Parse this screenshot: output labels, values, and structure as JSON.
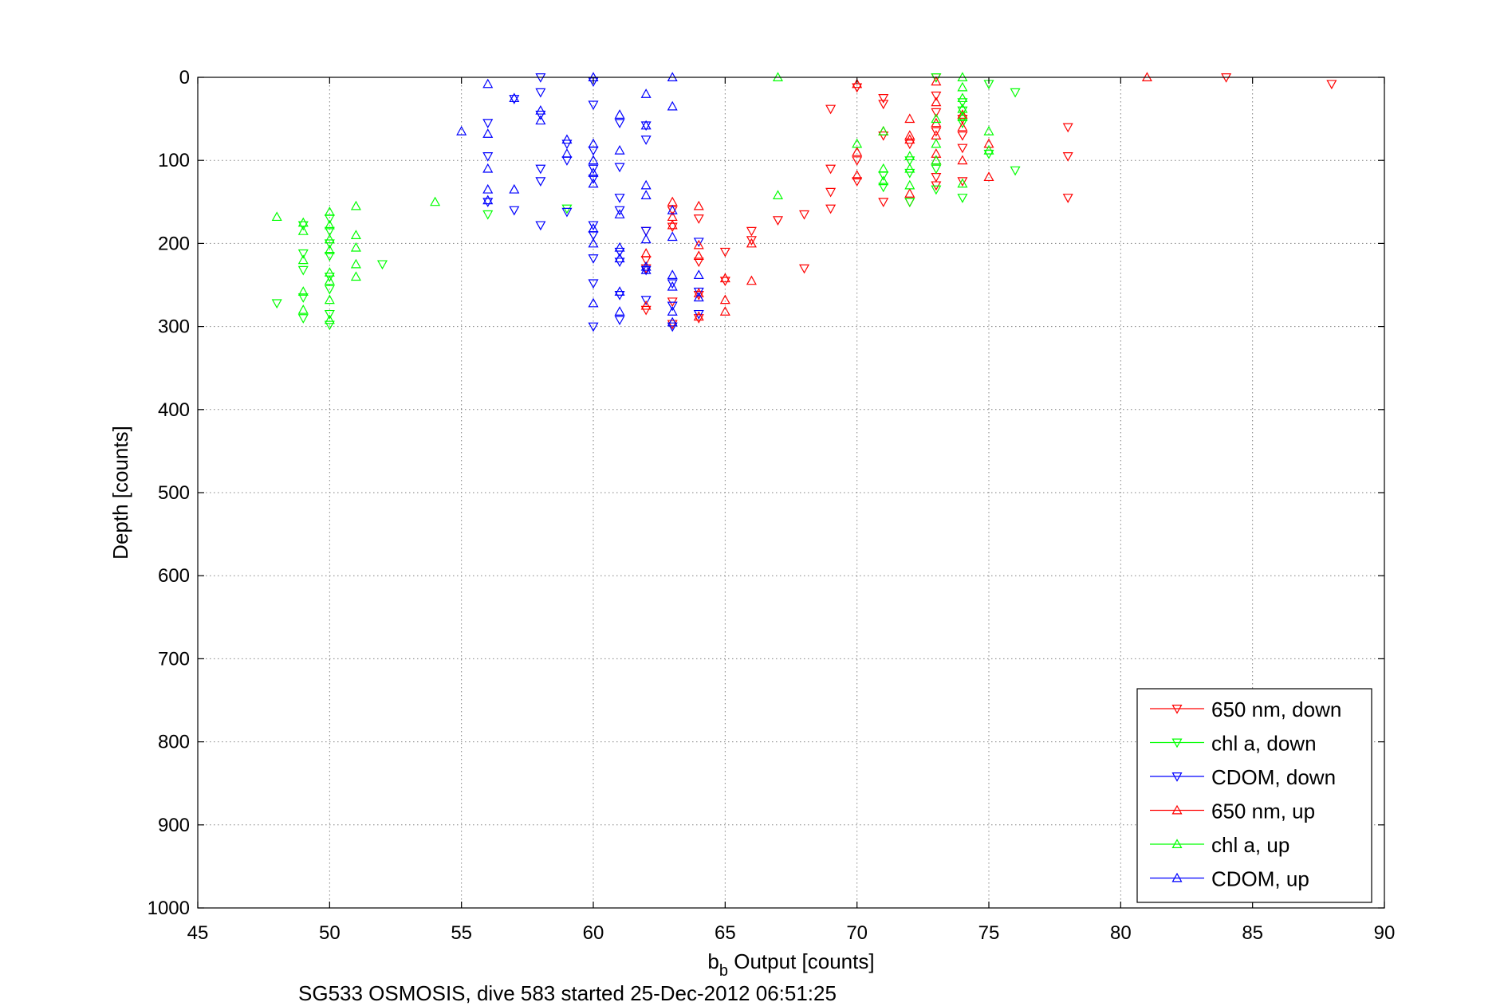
{
  "chart_data": {
    "type": "scatter",
    "title": "",
    "xlabel": "b",
    "xlabel_subscript": "b",
    "xlabel_suffix": " Output [counts]",
    "ylabel": "Depth [counts]",
    "caption": "SG533 OSMOSIS, dive 583 started 25-Dec-2012 06:51:25",
    "xlim": [
      45,
      90
    ],
    "ylim": [
      0,
      1000
    ],
    "y_reversed": true,
    "grid": true,
    "x_ticks": [
      45,
      50,
      55,
      60,
      65,
      70,
      75,
      80,
      85,
      90
    ],
    "y_ticks": [
      0,
      100,
      200,
      300,
      400,
      500,
      600,
      700,
      800,
      900,
      1000
    ],
    "legend_position": "bottom-right",
    "series": [
      {
        "name": "650 nm, down",
        "color": "#ff0000",
        "marker": "triangle-down",
        "points": [
          [
            84,
            0
          ],
          [
            88,
            8
          ],
          [
            70,
            12
          ],
          [
            71,
            25
          ],
          [
            71,
            32
          ],
          [
            69,
            38
          ],
          [
            73,
            0
          ],
          [
            73,
            22
          ],
          [
            73,
            42
          ],
          [
            73,
            65
          ],
          [
            74,
            50
          ],
          [
            74,
            70
          ],
          [
            74,
            85
          ],
          [
            72,
            80
          ],
          [
            71,
            70
          ],
          [
            78,
            60
          ],
          [
            78,
            95
          ],
          [
            70,
            100
          ],
          [
            70,
            125
          ],
          [
            69,
            110
          ],
          [
            69,
            138
          ],
          [
            69,
            158
          ],
          [
            68,
            165
          ],
          [
            67,
            172
          ],
          [
            66,
            185
          ],
          [
            66,
            196
          ],
          [
            65,
            210
          ],
          [
            65,
            245
          ],
          [
            64,
            222
          ],
          [
            64,
            262
          ],
          [
            64,
            290
          ],
          [
            63,
            160
          ],
          [
            63,
            180
          ],
          [
            63,
            270
          ],
          [
            63,
            297
          ],
          [
            62,
            185
          ],
          [
            62,
            220
          ],
          [
            62,
            230
          ],
          [
            62,
            280
          ],
          [
            71,
            150
          ],
          [
            72,
            150
          ],
          [
            73,
            120
          ],
          [
            73,
            130
          ],
          [
            74,
            125
          ],
          [
            78,
            145
          ],
          [
            68,
            230
          ],
          [
            64,
            170
          ]
        ]
      },
      {
        "name": "chl a, down",
        "color": "#00ff00",
        "marker": "triangle-down",
        "points": [
          [
            75,
            8
          ],
          [
            76,
            18
          ],
          [
            73,
            0
          ],
          [
            74,
            30
          ],
          [
            74,
            40
          ],
          [
            74,
            55
          ],
          [
            75,
            92
          ],
          [
            76,
            112
          ],
          [
            72,
            100
          ],
          [
            72,
            115
          ],
          [
            72,
            150
          ],
          [
            71,
            118
          ],
          [
            71,
            132
          ],
          [
            73,
            135
          ],
          [
            74,
            145
          ],
          [
            73,
            110
          ],
          [
            56,
            165
          ],
          [
            59,
            158
          ],
          [
            52,
            225
          ],
          [
            50,
            170
          ],
          [
            50,
            185
          ],
          [
            50,
            200
          ],
          [
            50,
            215
          ],
          [
            50,
            240
          ],
          [
            50,
            255
          ],
          [
            50,
            285
          ],
          [
            50,
            298
          ],
          [
            49,
            178
          ],
          [
            49,
            212
          ],
          [
            49,
            232
          ],
          [
            49,
            265
          ],
          [
            49,
            290
          ],
          [
            48,
            272
          ]
        ]
      },
      {
        "name": "CDOM, down",
        "color": "#0000ff",
        "marker": "triangle-down",
        "points": [
          [
            58,
            0
          ],
          [
            58,
            18
          ],
          [
            57,
            26
          ],
          [
            58,
            45
          ],
          [
            56,
            55
          ],
          [
            56,
            95
          ],
          [
            56,
            150
          ],
          [
            57,
            160
          ],
          [
            58,
            110
          ],
          [
            58,
            125
          ],
          [
            59,
            80
          ],
          [
            59,
            100
          ],
          [
            59,
            162
          ],
          [
            58,
            178
          ],
          [
            60,
            5
          ],
          [
            60,
            33
          ],
          [
            60,
            88
          ],
          [
            60,
            110
          ],
          [
            60,
            122
          ],
          [
            60,
            178
          ],
          [
            60,
            190
          ],
          [
            60,
            218
          ],
          [
            60,
            248
          ],
          [
            60,
            300
          ],
          [
            61,
            55
          ],
          [
            61,
            108
          ],
          [
            61,
            145
          ],
          [
            61,
            160
          ],
          [
            61,
            210
          ],
          [
            61,
            222
          ],
          [
            61,
            262
          ],
          [
            61,
            292
          ],
          [
            62,
            58
          ],
          [
            62,
            75
          ],
          [
            62,
            185
          ],
          [
            62,
            232
          ],
          [
            62,
            268
          ],
          [
            63,
            248
          ],
          [
            63,
            275
          ],
          [
            63,
            300
          ],
          [
            64,
            258
          ],
          [
            64,
            285
          ],
          [
            64,
            198
          ]
        ]
      },
      {
        "name": "650 nm, up",
        "color": "#ff0000",
        "marker": "triangle-up",
        "points": [
          [
            81,
            0
          ],
          [
            70,
            8
          ],
          [
            71,
            65
          ],
          [
            72,
            50
          ],
          [
            72,
            70
          ],
          [
            72,
            75
          ],
          [
            73,
            5
          ],
          [
            73,
            30
          ],
          [
            73,
            55
          ],
          [
            73,
            70
          ],
          [
            73,
            100
          ],
          [
            74,
            45
          ],
          [
            74,
            60
          ],
          [
            74,
            100
          ],
          [
            75,
            80
          ],
          [
            75,
            120
          ],
          [
            70,
            90
          ],
          [
            70,
            118
          ],
          [
            66,
            200
          ],
          [
            66,
            245
          ],
          [
            65,
            242
          ],
          [
            65,
            268
          ],
          [
            65,
            282
          ],
          [
            64,
            155
          ],
          [
            64,
            202
          ],
          [
            64,
            215
          ],
          [
            64,
            260
          ],
          [
            64,
            288
          ],
          [
            63,
            150
          ],
          [
            63,
            168
          ],
          [
            63,
            178
          ],
          [
            62,
            212
          ],
          [
            62,
            275
          ],
          [
            72,
            140
          ],
          [
            73,
            92
          ]
        ]
      },
      {
        "name": "chl a, up",
        "color": "#00ff00",
        "marker": "triangle-up",
        "points": [
          [
            67,
            0
          ],
          [
            74,
            0
          ],
          [
            74,
            12
          ],
          [
            74,
            25
          ],
          [
            74,
            38
          ],
          [
            74,
            48
          ],
          [
            75,
            65
          ],
          [
            75,
            88
          ],
          [
            73,
            50
          ],
          [
            73,
            80
          ],
          [
            73,
            100
          ],
          [
            72,
            95
          ],
          [
            72,
            110
          ],
          [
            72,
            130
          ],
          [
            70,
            80
          ],
          [
            71,
            65
          ],
          [
            71,
            110
          ],
          [
            71,
            125
          ],
          [
            74,
            128
          ],
          [
            67,
            142
          ],
          [
            54,
            150
          ],
          [
            51,
            155
          ],
          [
            51,
            190
          ],
          [
            51,
            205
          ],
          [
            51,
            225
          ],
          [
            51,
            240
          ],
          [
            50,
            162
          ],
          [
            50,
            178
          ],
          [
            50,
            195
          ],
          [
            50,
            208
          ],
          [
            50,
            235
          ],
          [
            50,
            245
          ],
          [
            50,
            268
          ],
          [
            50,
            292
          ],
          [
            49,
            175
          ],
          [
            49,
            185
          ],
          [
            49,
            258
          ],
          [
            49,
            280
          ],
          [
            48,
            168
          ],
          [
            49,
            220
          ]
        ]
      },
      {
        "name": "CDOM, up",
        "color": "#0000ff",
        "marker": "triangle-up",
        "points": [
          [
            56,
            8
          ],
          [
            63,
            0
          ],
          [
            60,
            0
          ],
          [
            58,
            40
          ],
          [
            58,
            52
          ],
          [
            57,
            25
          ],
          [
            55,
            65
          ],
          [
            56,
            68
          ],
          [
            56,
            110
          ],
          [
            56,
            135
          ],
          [
            56,
            148
          ],
          [
            57,
            135
          ],
          [
            59,
            75
          ],
          [
            59,
            92
          ],
          [
            60,
            80
          ],
          [
            60,
            100
          ],
          [
            60,
            115
          ],
          [
            60,
            128
          ],
          [
            60,
            182
          ],
          [
            60,
            200
          ],
          [
            60,
            272
          ],
          [
            61,
            45
          ],
          [
            61,
            88
          ],
          [
            61,
            165
          ],
          [
            61,
            205
          ],
          [
            61,
            218
          ],
          [
            61,
            258
          ],
          [
            61,
            282
          ],
          [
            62,
            20
          ],
          [
            62,
            58
          ],
          [
            62,
            130
          ],
          [
            62,
            142
          ],
          [
            62,
            195
          ],
          [
            62,
            228
          ],
          [
            62,
            232
          ],
          [
            63,
            35
          ],
          [
            63,
            160
          ],
          [
            63,
            192
          ],
          [
            63,
            238
          ],
          [
            63,
            252
          ],
          [
            63,
            282
          ],
          [
            63,
            295
          ],
          [
            64,
            238
          ],
          [
            64,
            265
          ]
        ]
      }
    ]
  }
}
